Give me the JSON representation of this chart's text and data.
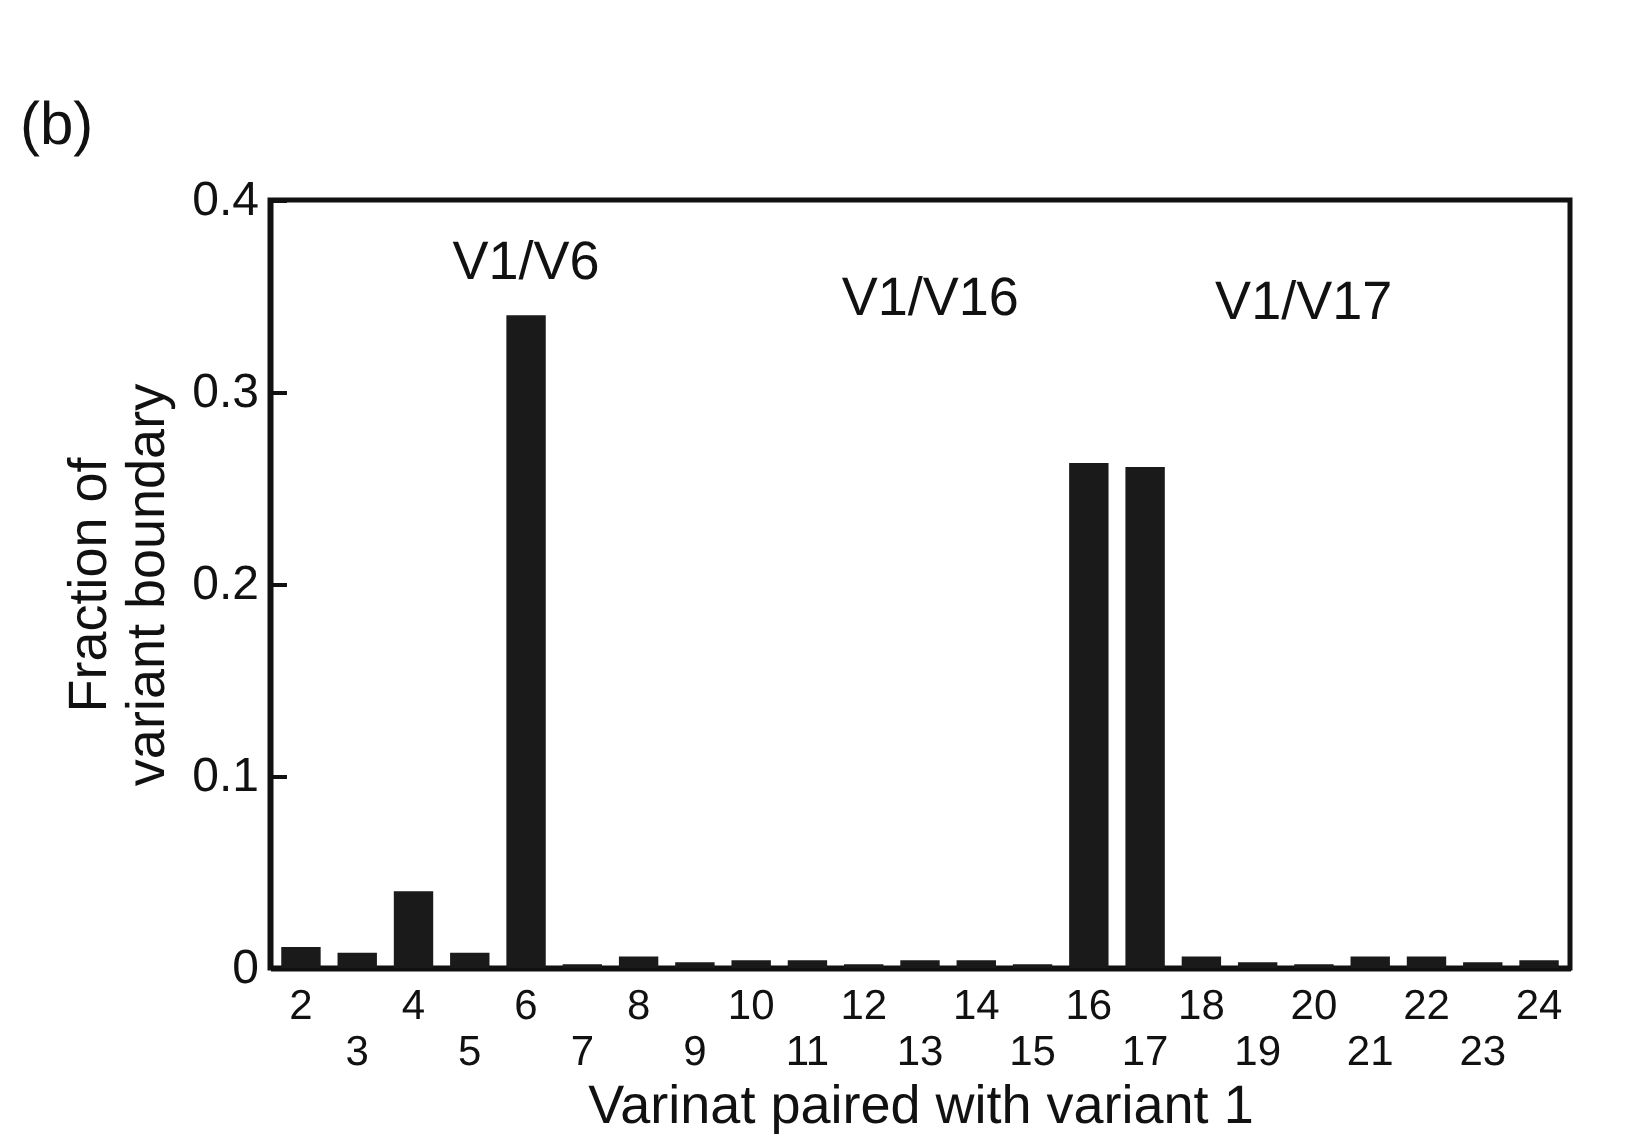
{
  "chart_data": {
    "type": "bar",
    "title": "(b)",
    "xlabel": "Varinat paired with variant 1",
    "ylabel": "Fraction of\nvariant  boundary",
    "categories": [
      "2",
      "3",
      "4",
      "5",
      "6",
      "7",
      "8",
      "9",
      "10",
      "11",
      "12",
      "13",
      "14",
      "15",
      "16",
      "17",
      "18",
      "19",
      "20",
      "21",
      "22",
      "23",
      "24"
    ],
    "values": [
      0.011,
      0.008,
      0.04,
      0.008,
      0.34,
      0.002,
      0.006,
      0.003,
      0.004,
      0.004,
      0.002,
      0.004,
      0.004,
      0.002,
      0.263,
      0.261,
      0.006,
      0.003,
      0.002,
      0.006,
      0.006,
      0.003,
      0.004
    ],
    "color": "#1a1a1a",
    "ylim": [
      0,
      0.4
    ],
    "yticks": [
      0,
      0.1,
      0.2,
      0.3,
      0.4
    ],
    "grid": false,
    "annotations": [
      {
        "text": "V1/V6",
        "x": "6",
        "y": 0.34
      },
      {
        "text": "V1/V16",
        "x": "16",
        "y": 0.263
      },
      {
        "text": "V1/V17",
        "x": "17",
        "y": 0.261
      }
    ]
  }
}
